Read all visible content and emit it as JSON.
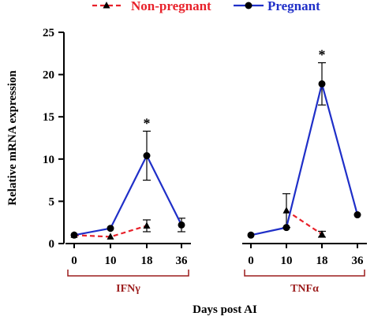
{
  "chart_data": {
    "type": "line",
    "title": "",
    "xlabel": "Days post AI",
    "ylabel": "Relative mRNA expression",
    "ylim": [
      0,
      25
    ],
    "yticks": [
      "0",
      "5",
      "10",
      "15",
      "20",
      "25"
    ],
    "grid": false,
    "legend_position": "top",
    "significance_marker": "*",
    "groups": [
      {
        "label": "IFNγ",
        "categories": [
          "0",
          "10",
          "18",
          "36"
        ],
        "series": [
          {
            "name": "Non-pregnant",
            "values": [
              1.0,
              0.8,
              2.1,
              null
            ],
            "errors": [
              0.1,
              0.15,
              0.7,
              null
            ]
          },
          {
            "name": "Pregnant",
            "values": [
              1.0,
              1.8,
              10.4,
              2.2
            ],
            "errors": [
              0.1,
              0.15,
              2.9,
              0.8
            ]
          }
        ],
        "annotations": [
          {
            "category": "18",
            "text": "*"
          }
        ]
      },
      {
        "label": "TNFα",
        "categories": [
          "0",
          "10",
          "18",
          "36"
        ],
        "series": [
          {
            "name": "Non-pregnant",
            "values": [
              null,
              3.9,
              1.1,
              null
            ],
            "errors": [
              null,
              2.0,
              0.35,
              null
            ]
          },
          {
            "name": "Pregnant",
            "values": [
              1.0,
              1.9,
              18.9,
              3.4
            ],
            "errors": [
              0.1,
              0.15,
              2.5,
              0.1
            ]
          }
        ],
        "annotations": [
          {
            "category": "18",
            "text": "*"
          }
        ]
      }
    ],
    "series_styles": [
      {
        "name": "Non-pregnant",
        "color": "#e8212a",
        "dash": "dashed",
        "marker": "triangle"
      },
      {
        "name": "Pregnant",
        "color": "#1f2fc8",
        "dash": "solid",
        "marker": "circle"
      }
    ],
    "axis_color": "#000000",
    "group_bracket_color": "#9b1b1b"
  }
}
